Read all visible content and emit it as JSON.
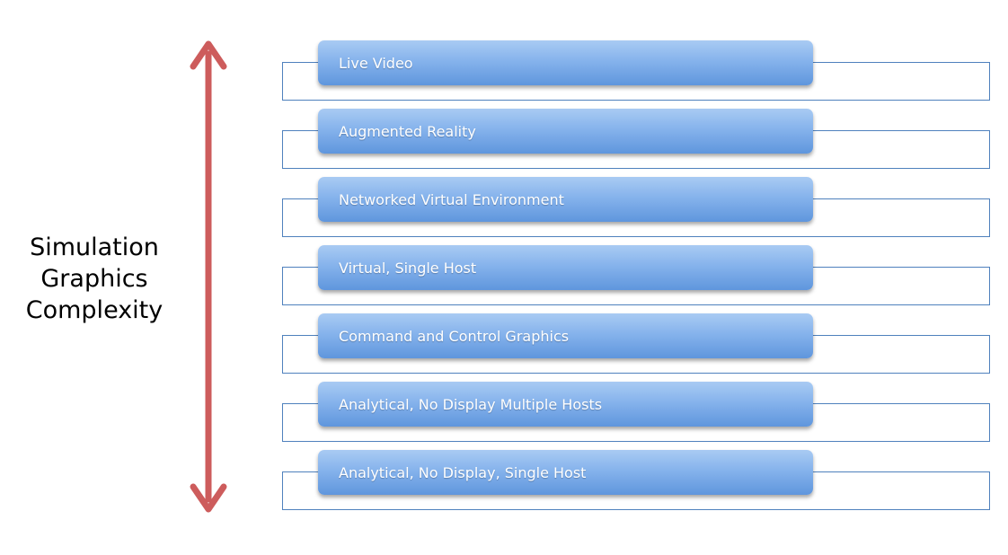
{
  "axis": {
    "label_lines": [
      "Simulation",
      "Graphics",
      "Complexity"
    ],
    "arrow_color": "#cd5c5c"
  },
  "levels": [
    {
      "label": "Live Video"
    },
    {
      "label": "Augmented Reality"
    },
    {
      "label": "Networked Virtual Environment"
    },
    {
      "label": "Virtual, Single Host"
    },
    {
      "label": "Command and Control Graphics"
    },
    {
      "label": "Analytical, No Display Multiple Hosts"
    },
    {
      "label": "Analytical, No Display, Single Host"
    }
  ],
  "colors": {
    "bar_top": "#a9cbf3",
    "bar_bottom": "#5f96dd",
    "frame_border": "#4f81bd"
  }
}
